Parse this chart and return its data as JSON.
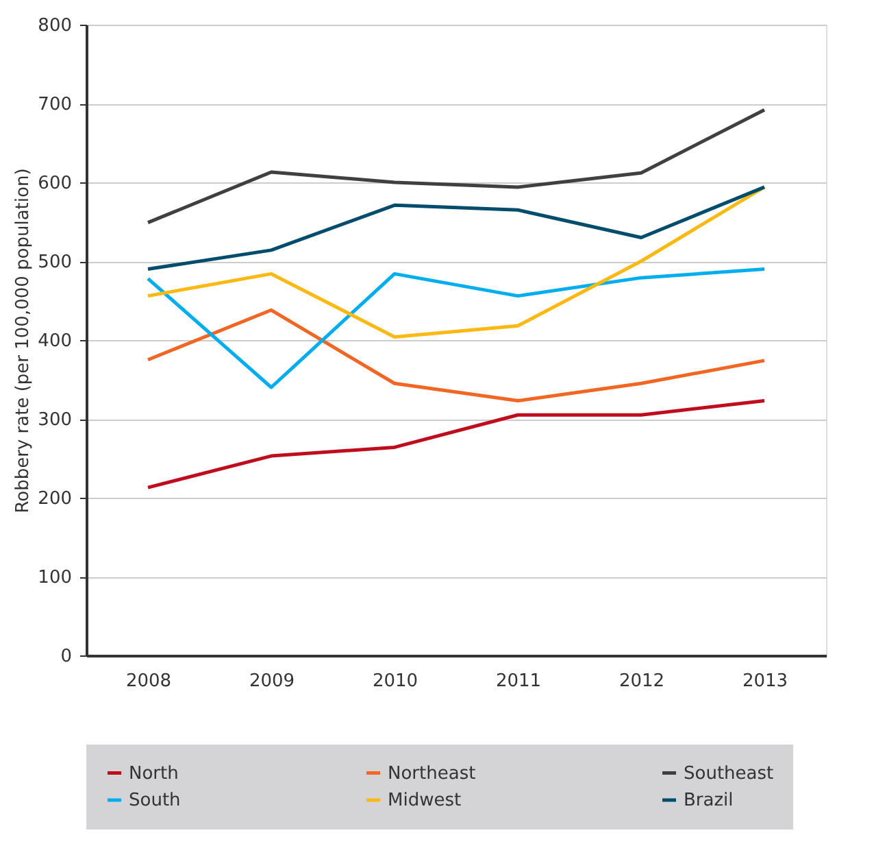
{
  "chart_data": {
    "type": "line",
    "ylabel": "Robbery rate (per 100,000 population)",
    "categories": [
      "2008",
      "2009",
      "2010",
      "2011",
      "2012",
      "2013"
    ],
    "ylim": [
      0,
      800
    ],
    "yticks": [
      0,
      100,
      200,
      300,
      400,
      500,
      600,
      700,
      800
    ],
    "grid": "y",
    "legend": "bottom",
    "marker": "none",
    "line_style": "solid",
    "series": [
      {
        "name": "North",
        "color": "#c00d1e",
        "values": [
          213,
          253,
          264,
          305,
          305,
          323
        ]
      },
      {
        "name": "Northeast",
        "color": "#f26522",
        "values": [
          375,
          438,
          345,
          323,
          345,
          374
        ]
      },
      {
        "name": "Southeast",
        "color": "#404040",
        "values": [
          549,
          613,
          600,
          594,
          612,
          692
        ]
      },
      {
        "name": "South",
        "color": "#00aeef",
        "values": [
          478,
          340,
          484,
          456,
          479,
          490
        ]
      },
      {
        "name": "Midwest",
        "color": "#fdb913",
        "values": [
          456,
          484,
          404,
          418,
          500,
          594
        ]
      },
      {
        "name": "Brazil",
        "color": "#004c6c",
        "values": [
          490,
          514,
          571,
          565,
          530,
          594
        ]
      }
    ]
  }
}
